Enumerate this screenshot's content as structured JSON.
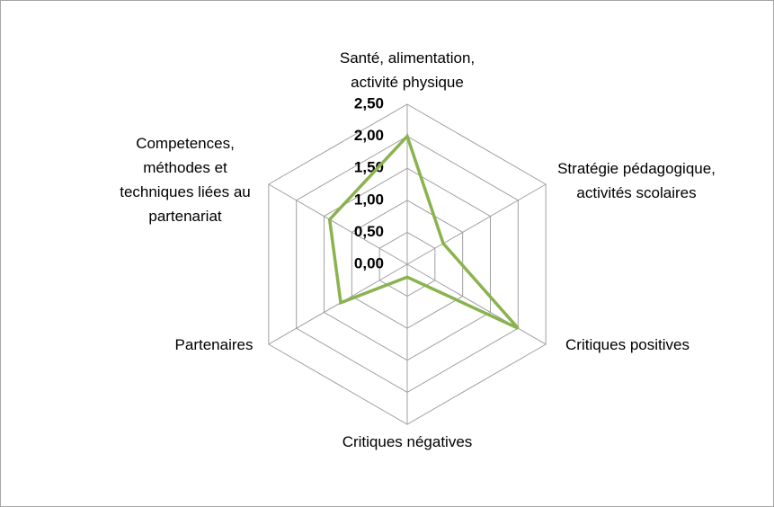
{
  "chart_data": {
    "type": "radar",
    "categories": [
      "Santé, alimentation, activité physique",
      "Stratégie pédagogique, activités scolaires",
      "Critiques positives",
      "Critiques négatives",
      "Partenaires",
      "Competences, méthodes et techniques liées au partenariat"
    ],
    "series": [
      {
        "color": "#8ab34f",
        "values": [
          2.0,
          0.65,
          2.0,
          0.2,
          1.2,
          1.4
        ]
      }
    ],
    "ylim": [
      0,
      2.5
    ],
    "yticks": [
      {
        "value": 0,
        "label": "0,00"
      },
      {
        "value": 0.5,
        "label": "0,50"
      },
      {
        "value": 1,
        "label": "1,00"
      },
      {
        "value": 1.5,
        "label": "1,50"
      },
      {
        "value": 2,
        "label": "2,00"
      },
      {
        "value": 2.5,
        "label": "2,50"
      }
    ],
    "grid": true
  }
}
